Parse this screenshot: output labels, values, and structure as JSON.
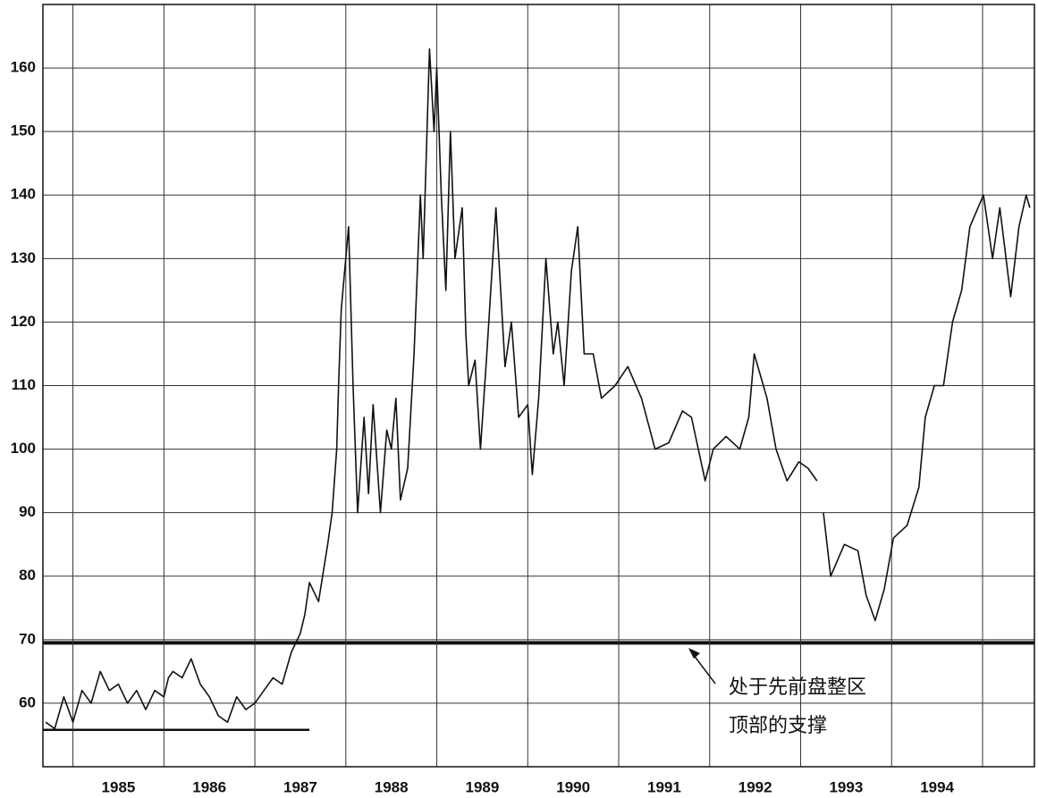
{
  "chart_data": {
    "type": "line",
    "color": "#111111",
    "x": [
      1984.7,
      1984.8,
      1984.9,
      1985.0,
      1985.1,
      1985.2,
      1985.3,
      1985.4,
      1985.5,
      1985.6,
      1985.7,
      1985.8,
      1985.9,
      1986.0,
      1986.05,
      1986.1,
      1986.2,
      1986.3,
      1986.4,
      1986.5,
      1986.6,
      1986.7,
      1986.8,
      1986.9,
      1987.0,
      1987.1,
      1987.2,
      1987.3,
      1987.4,
      1987.5,
      1987.55,
      1987.6,
      1987.7,
      1987.8,
      1987.85,
      1987.9,
      1987.92,
      1987.95,
      1988.03,
      1988.08,
      1988.13,
      1988.2,
      1988.25,
      1988.3,
      1988.38,
      1988.45,
      1988.5,
      1988.55,
      1988.6,
      1988.68,
      1988.75,
      1988.82,
      1988.85,
      1988.92,
      1988.97,
      1989.0,
      1989.05,
      1989.1,
      1989.15,
      1989.2,
      1989.28,
      1989.32,
      1989.35,
      1989.42,
      1989.48,
      1989.55,
      1989.65,
      1989.75,
      1989.82,
      1989.9,
      1990.0,
      1990.05,
      1990.12,
      1990.2,
      1990.28,
      1990.33,
      1990.4,
      1990.48,
      1990.55,
      1990.62,
      1990.72,
      1990.81,
      1990.96,
      1991.1,
      1991.25,
      1991.4,
      1991.55,
      1991.7,
      1991.8,
      1991.95,
      1992.04,
      1992.18,
      1992.33,
      1992.43,
      1992.49,
      1992.63,
      1992.73,
      1992.85,
      1992.98,
      1993.08,
      1993.18,
      1993.21,
      1993.25,
      1993.33,
      1993.48,
      1993.63,
      1993.72,
      1993.82,
      1993.92,
      1994.02,
      1994.17,
      1994.3,
      1994.37,
      1994.47,
      1994.57,
      1994.67,
      1994.77,
      1994.86,
      1995.01,
      1995.11,
      1995.19,
      1995.31,
      1995.4,
      1995.48,
      1995.52
    ],
    "values": [
      57,
      56,
      61,
      57,
      62,
      60,
      65,
      62,
      63,
      60,
      62,
      59,
      62,
      61,
      64,
      65,
      64,
      67,
      63,
      61,
      58,
      57,
      61,
      59,
      60,
      62,
      64,
      63,
      68,
      71,
      74,
      79,
      76,
      85,
      90,
      100,
      110,
      122,
      135,
      110,
      90,
      105,
      93,
      107,
      90,
      103,
      100,
      108,
      92,
      97,
      115,
      140,
      130,
      163,
      150,
      160,
      140,
      125,
      150,
      130,
      138,
      118,
      110,
      114,
      100,
      115,
      138,
      113,
      120,
      105,
      107,
      96,
      108,
      130,
      115,
      120,
      110,
      128,
      135,
      115,
      115,
      108,
      110,
      113,
      108,
      100,
      101,
      106,
      105,
      95,
      100,
      102,
      100,
      105,
      115,
      108,
      100,
      95,
      98,
      97,
      95,
      null,
      90,
      80,
      85,
      84,
      77,
      73,
      78,
      86,
      88,
      94,
      105,
      110,
      110,
      120,
      125,
      135,
      140,
      130,
      138,
      124,
      135,
      140,
      138
    ],
    "xlim": [
      1984.67,
      1995.57
    ],
    "xgrid": [
      1985,
      1986,
      1987,
      1988,
      1989,
      1990,
      1991,
      1992,
      1993,
      1994,
      1995
    ],
    "xticks": [
      {
        "value": 1985.5,
        "label": "1985"
      },
      {
        "value": 1986.5,
        "label": "1986"
      },
      {
        "value": 1987.5,
        "label": "1987"
      },
      {
        "value": 1988.5,
        "label": "1988"
      },
      {
        "value": 1989.5,
        "label": "1989"
      },
      {
        "value": 1990.5,
        "label": "1990"
      },
      {
        "value": 1991.5,
        "label": "1991"
      },
      {
        "value": 1992.5,
        "label": "1992"
      },
      {
        "value": 1993.5,
        "label": "1993"
      },
      {
        "value": 1994.5,
        "label": "1994"
      }
    ],
    "ylim": [
      50,
      170
    ],
    "yticks": [
      60,
      70,
      80,
      90,
      100,
      110,
      120,
      130,
      140,
      150,
      160
    ],
    "grid": true,
    "hlines": [
      {
        "y": 69.5
      },
      {
        "y": 55.8,
        "x": [
          1984.67,
          1987.6
        ]
      }
    ],
    "annotation": [
      "处于先前盘整区",
      "顶部的支撑"
    ]
  }
}
